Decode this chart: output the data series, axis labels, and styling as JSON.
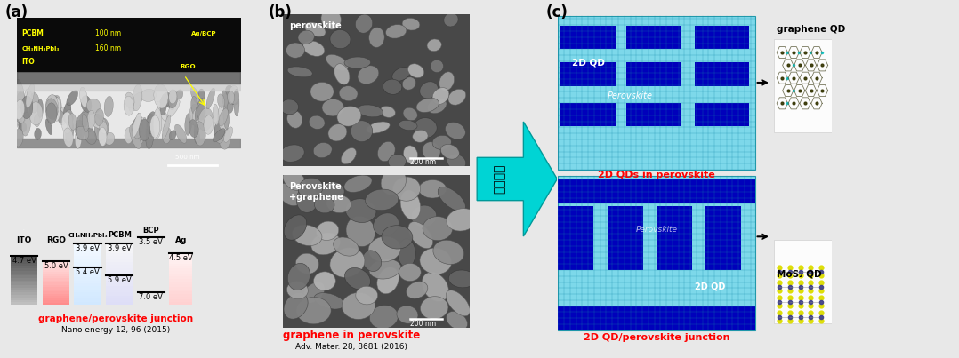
{
  "panel_a_label": "(a)",
  "panel_b_label": "(b)",
  "panel_c_label": "(c)",
  "red_label_a": "graphene/perovskite junction",
  "citation_a": "Nano energy 12, 96 (2015)",
  "perovskite_label": "perovskite",
  "perovskite_graphene_label": "Perovskite\n+graphene",
  "red_label_b": "graphene in perovskite",
  "citation_b": "Adv. Mater. 28, 8681 (2016)",
  "arrow_label": "연구방향",
  "top_label_c": "2D QDs in perovskite",
  "bottom_label_c": "2D QD/perovskite junction",
  "graphene_qd_label": "graphene QD",
  "mos2_qd_label": "MoS₂ QD",
  "label_2d_qd_top": "2D QD",
  "label_perovskite_top": "Perovskite",
  "label_perovskite_bottom": "Perovskite",
  "label_2d_qd_bottom": "2D QD",
  "bg_color": "#e8e8e8",
  "cyan_arrow_color": "#00d4d4",
  "blue_rect_color": "#0000bb",
  "cyan_bg_color": "#7dd8ea"
}
